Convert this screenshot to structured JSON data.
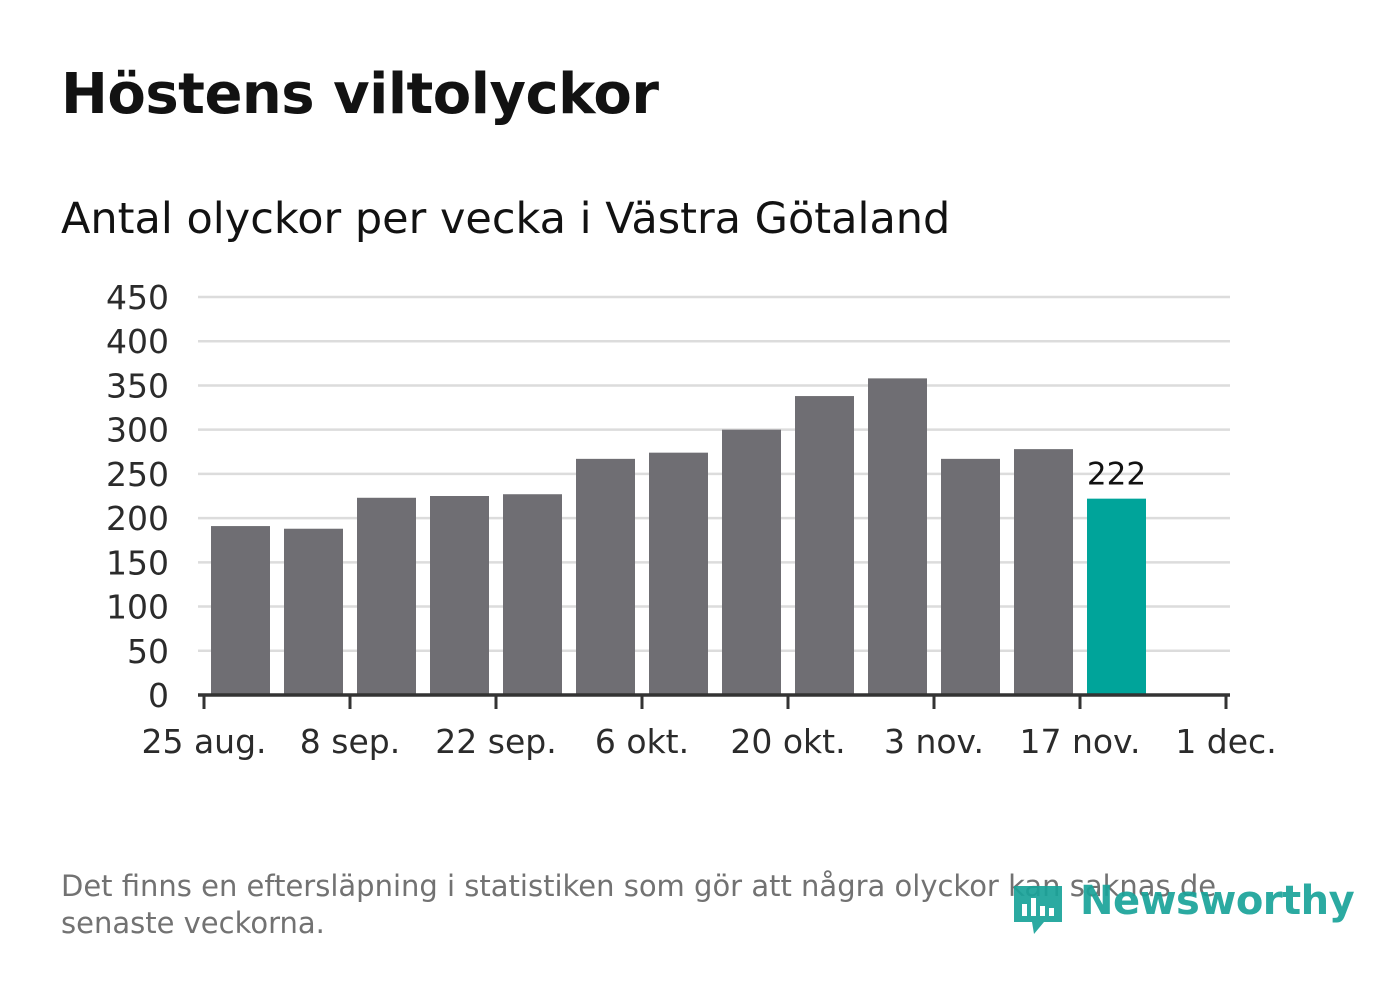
{
  "title": "Höstens viltolyckor",
  "subtitle": "Antal olyckor per vecka i Västra Götaland",
  "footnote": "Det finns en eftersläpning i statistiken som gör att några olyckor kan saknas de senaste veckorna.",
  "logo_text": "Newsworthy",
  "colors": {
    "bar": "#6f6e73",
    "highlight": "#00a49a",
    "grid": "#dcdcdc",
    "axis": "#333333"
  },
  "chart_data": {
    "type": "bar",
    "title": "Höstens viltolyckor",
    "subtitle": "Antal olyckor per vecka i Västra Götaland",
    "xlabel": "",
    "ylabel": "",
    "ylim": [
      0,
      450
    ],
    "yticks": [
      0,
      50,
      100,
      150,
      200,
      250,
      300,
      350,
      400,
      450
    ],
    "grid": true,
    "x_axis": {
      "start_week": 0,
      "end_week": 14,
      "ticks": [
        {
          "week": 0,
          "label": "25 aug."
        },
        {
          "week": 2,
          "label": "8 sep."
        },
        {
          "week": 4,
          "label": "22 sep."
        },
        {
          "week": 6,
          "label": "6 okt."
        },
        {
          "week": 8,
          "label": "20 okt."
        },
        {
          "week": 10,
          "label": "3 nov."
        },
        {
          "week": 12,
          "label": "17 nov."
        },
        {
          "week": 14,
          "label": "1 dec."
        }
      ]
    },
    "weeks": [
      0,
      1,
      2,
      3,
      4,
      5,
      6,
      7,
      8,
      9,
      10,
      11,
      12
    ],
    "values": [
      191,
      188,
      223,
      225,
      227,
      267,
      274,
      300,
      338,
      358,
      267,
      278,
      222
    ],
    "highlight_index": 12,
    "data_labels": [
      {
        "index": 12,
        "text": "222"
      }
    ]
  }
}
